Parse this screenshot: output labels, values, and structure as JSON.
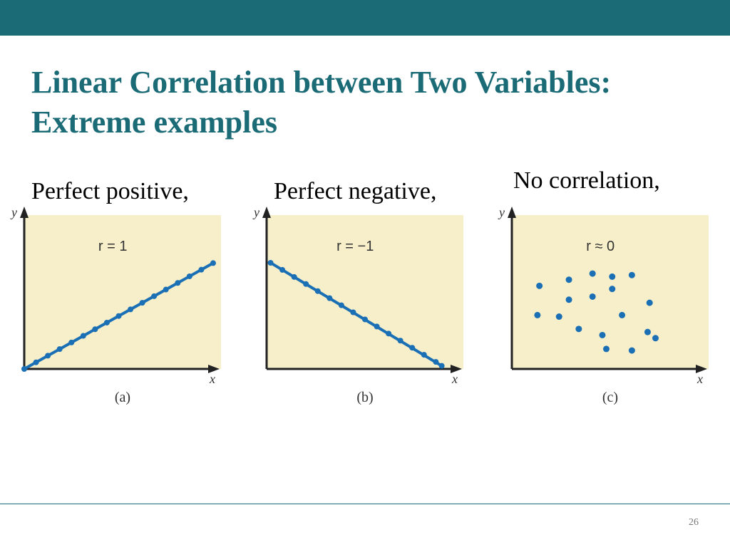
{
  "slide": {
    "title_line1": "Linear Correlation between Two Variables:",
    "title_line2": "Extreme examples",
    "page_number": "26",
    "colors": {
      "accent": "#1b6b77",
      "plot_bg": "#f7efc9",
      "point": "#1a6fb5"
    }
  },
  "panel_labels": {
    "a": "Perfect positive,",
    "b": "Perfect negative,",
    "c": "No correlation,"
  },
  "chart_data": [
    {
      "type": "line",
      "caption": "(a)",
      "annotation": "r = 1",
      "xlabel": "x",
      "ylabel": "y",
      "xlim": [
        0,
        10
      ],
      "ylim": [
        0,
        10
      ],
      "points": [
        [
          0,
          0
        ],
        [
          0.6,
          0.43
        ],
        [
          1.2,
          0.86
        ],
        [
          1.8,
          1.29
        ],
        [
          2.4,
          1.72
        ],
        [
          3.0,
          2.15
        ],
        [
          3.6,
          2.58
        ],
        [
          4.2,
          3.01
        ],
        [
          4.8,
          3.44
        ],
        [
          5.4,
          3.87
        ],
        [
          6.0,
          4.3
        ],
        [
          6.6,
          4.73
        ],
        [
          7.2,
          5.16
        ],
        [
          7.8,
          5.59
        ],
        [
          8.4,
          6.02
        ],
        [
          9.0,
          6.45
        ],
        [
          9.6,
          6.88
        ]
      ]
    },
    {
      "type": "line",
      "caption": "(b)",
      "annotation": "r = −1",
      "xlabel": "x",
      "ylabel": "y",
      "xlim": [
        0,
        10
      ],
      "ylim": [
        0,
        10
      ],
      "points": [
        [
          0.2,
          6.9
        ],
        [
          0.8,
          6.44
        ],
        [
          1.4,
          5.98
        ],
        [
          2.0,
          5.52
        ],
        [
          2.6,
          5.06
        ],
        [
          3.2,
          4.6
        ],
        [
          3.8,
          4.14
        ],
        [
          4.4,
          3.68
        ],
        [
          5.0,
          3.22
        ],
        [
          5.6,
          2.76
        ],
        [
          6.2,
          2.3
        ],
        [
          6.8,
          1.84
        ],
        [
          7.4,
          1.38
        ],
        [
          8.0,
          0.92
        ],
        [
          8.6,
          0.46
        ],
        [
          8.9,
          0.2
        ]
      ]
    },
    {
      "type": "scatter",
      "caption": "(c)",
      "annotation": "r ≈ 0",
      "xlabel": "x",
      "ylabel": "y",
      "xlim": [
        0,
        10
      ],
      "ylim": [
        0,
        10
      ],
      "points": [
        [
          1.4,
          5.4
        ],
        [
          1.3,
          3.5
        ],
        [
          2.4,
          3.4
        ],
        [
          2.9,
          5.8
        ],
        [
          2.9,
          4.5
        ],
        [
          3.4,
          2.6
        ],
        [
          4.1,
          6.2
        ],
        [
          4.1,
          4.7
        ],
        [
          4.6,
          2.2
        ],
        [
          4.8,
          1.3
        ],
        [
          5.1,
          6.0
        ],
        [
          5.1,
          5.2
        ],
        [
          5.6,
          3.5
        ],
        [
          6.1,
          6.1
        ],
        [
          6.1,
          1.2
        ],
        [
          6.9,
          2.4
        ],
        [
          7.0,
          4.3
        ],
        [
          7.3,
          2.0
        ]
      ]
    }
  ]
}
